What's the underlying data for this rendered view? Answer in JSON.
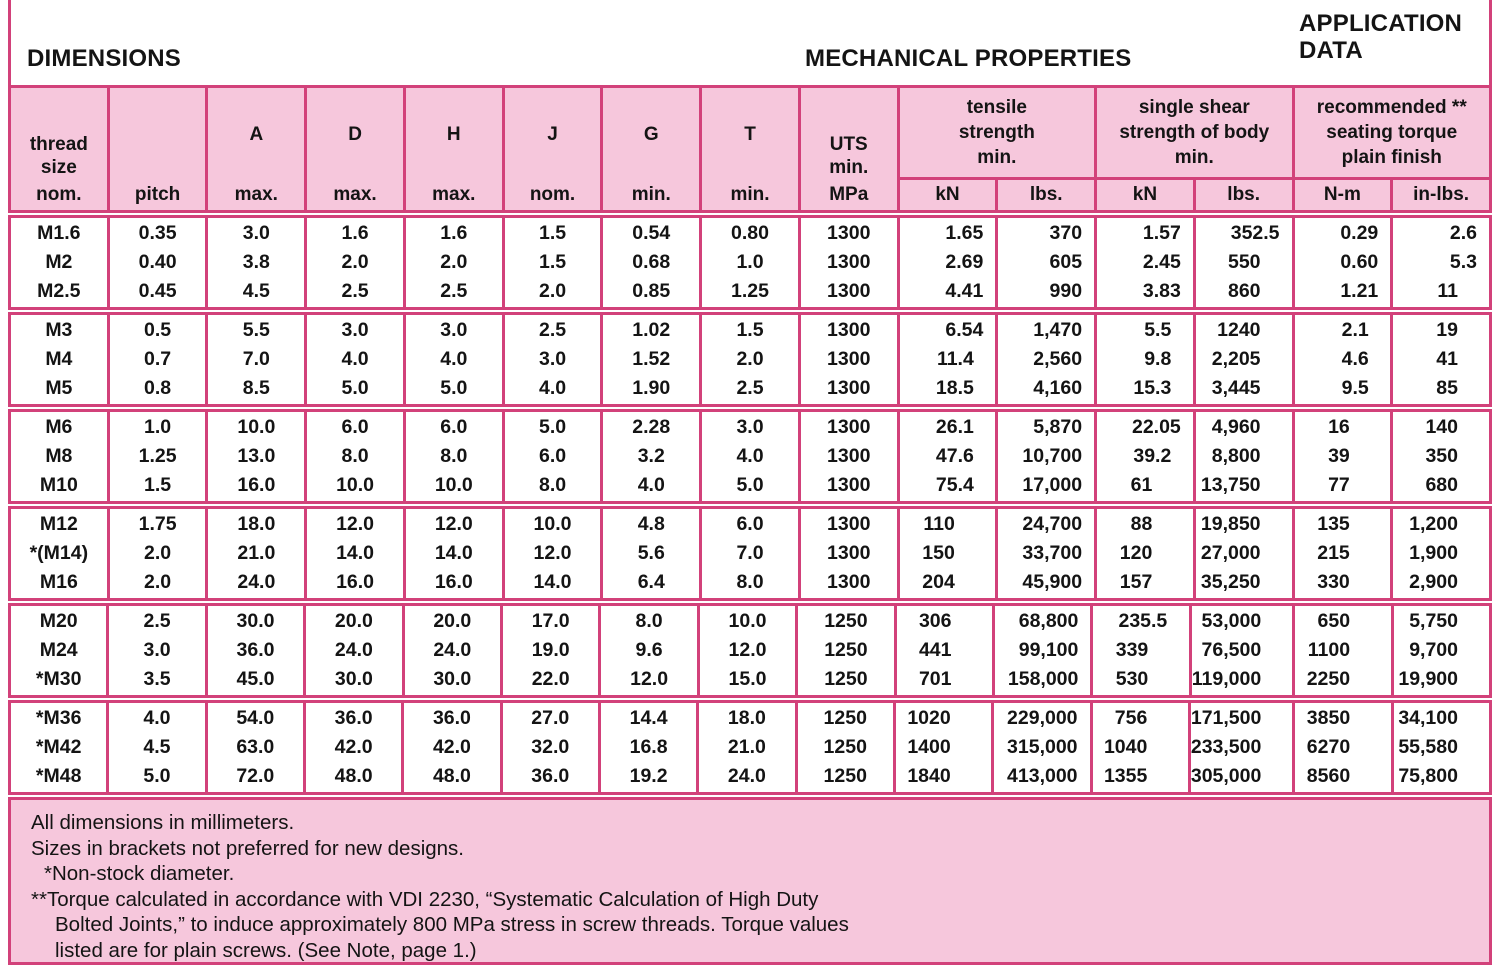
{
  "titles": {
    "dimensions": "DIMENSIONS",
    "mechanical": "MECHANICAL PROPERTIES",
    "application": "APPLICATION\nDATA"
  },
  "table": {
    "columns": [
      {
        "id": "thread",
        "top": "thread\nsize",
        "bottom": "nom."
      },
      {
        "id": "pitch",
        "top": "",
        "bottom": "pitch"
      },
      {
        "id": "A",
        "top": "A",
        "bottom": "max."
      },
      {
        "id": "D",
        "top": "D",
        "bottom": "max."
      },
      {
        "id": "H",
        "top": "H",
        "bottom": "max."
      },
      {
        "id": "J",
        "top": "J",
        "bottom": "nom."
      },
      {
        "id": "G",
        "top": "G",
        "bottom": "min."
      },
      {
        "id": "T",
        "top": "T",
        "bottom": "min."
      },
      {
        "id": "UTS",
        "top": "UTS\nmin.",
        "bottom": "MPa"
      }
    ],
    "group_headers": [
      {
        "label": "tensile\nstrength\nmin.",
        "sub": [
          "kN",
          "lbs."
        ]
      },
      {
        "label": "single shear\nstrength of body\nmin.",
        "sub": [
          "kN",
          "lbs."
        ]
      },
      {
        "label": "recommended **\nseating torque\nplain finish",
        "sub": [
          "N-m",
          "in-lbs."
        ]
      }
    ],
    "groups": [
      [
        [
          "M1.6",
          "0.35",
          "3.0",
          "1.6",
          "1.6",
          "1.5",
          "0.54",
          "0.80",
          "1300",
          "1.65",
          "370",
          "1.57",
          "352.5",
          "0.29",
          "2.6"
        ],
        [
          "M2",
          "0.40",
          "3.8",
          "2.0",
          "2.0",
          "1.5",
          "0.68",
          "1.0",
          "1300",
          "2.69",
          "605",
          "2.45",
          "550",
          "0.60",
          "5.3"
        ],
        [
          "M2.5",
          "0.45",
          "4.5",
          "2.5",
          "2.5",
          "2.0",
          "0.85",
          "1.25",
          "1300",
          "4.41",
          "990",
          "3.83",
          "860",
          "1.21",
          "11"
        ]
      ],
      [
        [
          "M3",
          "0.5",
          "5.5",
          "3.0",
          "3.0",
          "2.5",
          "1.02",
          "1.5",
          "1300",
          "6.54",
          "1,470",
          "5.5",
          "1240",
          "2.1",
          "19"
        ],
        [
          "M4",
          "0.7",
          "7.0",
          "4.0",
          "4.0",
          "3.0",
          "1.52",
          "2.0",
          "1300",
          "11.4",
          "2,560",
          "9.8",
          "2,205",
          "4.6",
          "41"
        ],
        [
          "M5",
          "0.8",
          "8.5",
          "5.0",
          "5.0",
          "4.0",
          "1.90",
          "2.5",
          "1300",
          "18.5",
          "4,160",
          "15.3",
          "3,445",
          "9.5",
          "85"
        ]
      ],
      [
        [
          "M6",
          "1.0",
          "10.0",
          "6.0",
          "6.0",
          "5.0",
          "2.28",
          "3.0",
          "1300",
          "26.1",
          "5,870",
          "22.05",
          "4,960",
          "16",
          "140"
        ],
        [
          "M8",
          "1.25",
          "13.0",
          "8.0",
          "8.0",
          "6.0",
          "3.2",
          "4.0",
          "1300",
          "47.6",
          "10,700",
          "39.2",
          "8,800",
          "39",
          "350"
        ],
        [
          "M10",
          "1.5",
          "16.0",
          "10.0",
          "10.0",
          "8.0",
          "4.0",
          "5.0",
          "1300",
          "75.4",
          "17,000",
          "61",
          "13,750",
          "77",
          "680"
        ]
      ],
      [
        [
          "M12",
          "1.75",
          "18.0",
          "12.0",
          "12.0",
          "10.0",
          "4.8",
          "6.0",
          "1300",
          "110",
          "24,700",
          "88",
          "19,850",
          "135",
          "1,200"
        ],
        [
          "*(M14)",
          "2.0",
          "21.0",
          "14.0",
          "14.0",
          "12.0",
          "5.6",
          "7.0",
          "1300",
          "150",
          "33,700",
          "120",
          "27,000",
          "215",
          "1,900"
        ],
        [
          "M16",
          "2.0",
          "24.0",
          "16.0",
          "16.0",
          "14.0",
          "6.4",
          "8.0",
          "1300",
          "204",
          "45,900",
          "157",
          "35,250",
          "330",
          "2,900"
        ]
      ],
      [
        [
          "M20",
          "2.5",
          "30.0",
          "20.0",
          "20.0",
          "17.0",
          "8.0",
          "10.0",
          "1250",
          "306",
          "68,800",
          "235.5",
          "53,000",
          "650",
          "5,750"
        ],
        [
          "M24",
          "3.0",
          "36.0",
          "24.0",
          "24.0",
          "19.0",
          "9.6",
          "12.0",
          "1250",
          "441",
          "99,100",
          "339",
          "76,500",
          "1100",
          "9,700"
        ],
        [
          "*M30",
          "3.5",
          "45.0",
          "30.0",
          "30.0",
          "22.0",
          "12.0",
          "15.0",
          "1250",
          "701",
          "158,000",
          "530",
          "119,000",
          "2250",
          "19,900"
        ]
      ],
      [
        [
          "*M36",
          "4.0",
          "54.0",
          "36.0",
          "36.0",
          "27.0",
          "14.4",
          "18.0",
          "1250",
          "1020",
          "229,000",
          "756",
          "171,500",
          "3850",
          "34,100"
        ],
        [
          "*M42",
          "4.5",
          "63.0",
          "42.0",
          "42.0",
          "32.0",
          "16.8",
          "21.0",
          "1250",
          "1400",
          "315,000",
          "1040",
          "233,500",
          "6270",
          "55,580"
        ],
        [
          "*M48",
          "5.0",
          "72.0",
          "48.0",
          "48.0",
          "36.0",
          "19.2",
          "24.0",
          "1250",
          "1840",
          "413,000",
          "1355",
          "305,000",
          "8560",
          "75,800"
        ]
      ]
    ]
  },
  "notes": [
    "All dimensions in millimeters.",
    "Sizes in brackets not preferred for new designs.",
    "*Non-stock diameter.",
    "**Torque calculated in accordance with VDI 2230, “Systematic Calculation of High Duty",
    "Bolted Joints,” to induce approximately 800 MPa stress in screw threads. Torque values",
    "listed are for plain screws. (See Note, page 1.)"
  ],
  "colors": {
    "fill_pink": "#f6c7dc",
    "border_pink": "#d2417a",
    "text": "#141414"
  }
}
